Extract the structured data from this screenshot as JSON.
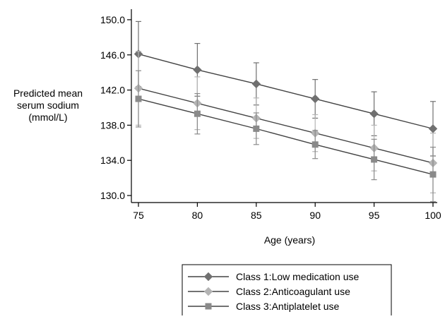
{
  "chart_data": {
    "type": "line",
    "title": "",
    "xlabel": "Age (years)",
    "ylabel_lines": [
      "Predicted mean",
      "serum sodium",
      "(mmol/L)"
    ],
    "x": [
      75,
      80,
      85,
      90,
      95,
      100
    ],
    "x_ticks": [
      "75",
      "80",
      "85",
      "90",
      "95",
      "100"
    ],
    "y_ticks": [
      "130.0",
      "134.0",
      "138.0",
      "142.0",
      "146.0",
      "150.0"
    ],
    "xlim": [
      75,
      100
    ],
    "ylim": [
      129.2,
      151.2
    ],
    "grid": false,
    "legend_position": "bottom",
    "series": [
      {
        "name": "Class 1:Low medication use",
        "marker": "diamond",
        "color": "#707070",
        "values": [
          146.1,
          144.3,
          142.7,
          141.0,
          139.3,
          137.6
        ],
        "ci_low": [
          142.4,
          141.3,
          140.3,
          138.8,
          136.8,
          134.5
        ],
        "ci_high": [
          149.8,
          147.3,
          145.1,
          143.2,
          141.8,
          140.7
        ]
      },
      {
        "name": "Class 2:Anticoagulant use",
        "marker": "diamond",
        "color": "#b4b4b4",
        "values": [
          142.2,
          140.5,
          138.8,
          137.1,
          135.4,
          133.7
        ],
        "ci_low": [
          138.0,
          137.5,
          136.5,
          135.0,
          132.8,
          130.3
        ],
        "ci_high": [
          146.4,
          143.5,
          141.1,
          139.2,
          138.0,
          137.1
        ]
      },
      {
        "name": "Class 3:Antiplatelet use",
        "marker": "square",
        "color": "#8a8a8a",
        "values": [
          141.0,
          139.3,
          137.6,
          135.8,
          134.1,
          132.4
        ],
        "ci_low": [
          137.8,
          137.0,
          135.8,
          134.2,
          131.8,
          129.3
        ],
        "ci_high": [
          144.2,
          141.6,
          139.4,
          137.4,
          136.4,
          135.5
        ]
      }
    ]
  }
}
